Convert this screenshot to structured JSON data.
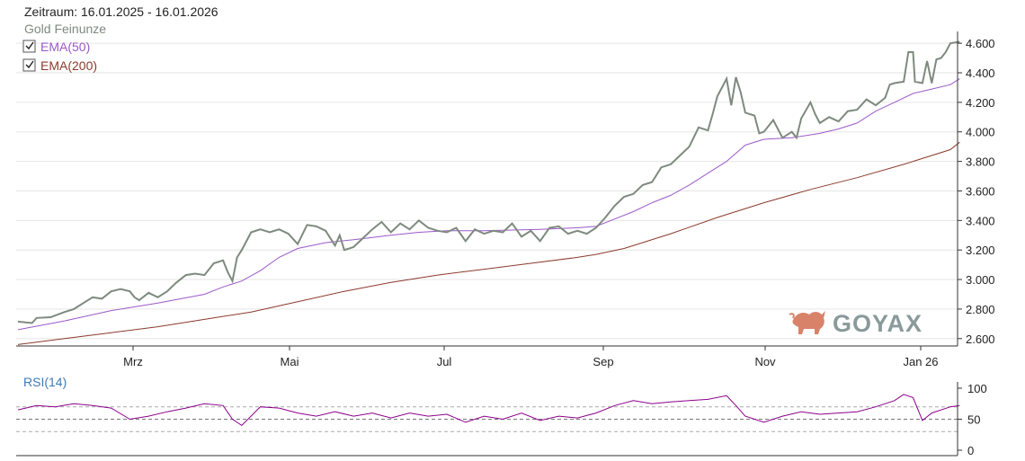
{
  "header": {
    "period_label": "Zeitraum: 16.01.2025 - 16.01.2026",
    "series_label": "Gold Feinunze"
  },
  "legend": [
    {
      "label": "EMA(50)",
      "color": "#9b59c9",
      "checked": true
    },
    {
      "label": "EMA(200)",
      "color": "#8b3a2b",
      "checked": true
    }
  ],
  "logo": {
    "text": "GOYAX",
    "icon": "bull-icon"
  },
  "colors": {
    "price": "#7e8a7e",
    "ema50": "#9b59c9",
    "ema200": "#8b3a2b",
    "rsi": "#8b008b",
    "rsi_light": "#e8a0e8",
    "grid": "#e6e6e6"
  },
  "chart_data": [
    {
      "type": "line",
      "x_labels": [
        "Mrz",
        "Mai",
        "Jul",
        "Sep",
        "Nov",
        "Jan 26"
      ],
      "ylim": [
        2550,
        4680
      ],
      "yticks": [
        "4.600",
        "4.400",
        "4.200",
        "4.000",
        "3.800",
        "3.600",
        "3.400",
        "3.200",
        "3.000",
        "2.800",
        "2.600"
      ],
      "grid": true,
      "legend_position": "top-left",
      "series": [
        {
          "name": "Gold Feinunze",
          "color": "#7e8a7e",
          "points": [
            [
              0,
              2715
            ],
            [
              0.015,
              2705
            ],
            [
              0.02,
              2740
            ],
            [
              0.035,
              2745
            ],
            [
              0.05,
              2780
            ],
            [
              0.06,
              2800
            ],
            [
              0.07,
              2840
            ],
            [
              0.08,
              2880
            ],
            [
              0.09,
              2870
            ],
            [
              0.1,
              2920
            ],
            [
              0.11,
              2935
            ],
            [
              0.12,
              2920
            ],
            [
              0.125,
              2880
            ],
            [
              0.13,
              2860
            ],
            [
              0.14,
              2910
            ],
            [
              0.15,
              2880
            ],
            [
              0.16,
              2920
            ],
            [
              0.17,
              2980
            ],
            [
              0.18,
              3030
            ],
            [
              0.19,
              3040
            ],
            [
              0.2,
              3030
            ],
            [
              0.21,
              3110
            ],
            [
              0.22,
              3130
            ],
            [
              0.225,
              3050
            ],
            [
              0.23,
              2990
            ],
            [
              0.235,
              3150
            ],
            [
              0.24,
              3200
            ],
            [
              0.25,
              3320
            ],
            [
              0.26,
              3340
            ],
            [
              0.27,
              3320
            ],
            [
              0.28,
              3340
            ],
            [
              0.29,
              3310
            ],
            [
              0.3,
              3240
            ],
            [
              0.31,
              3370
            ],
            [
              0.32,
              3360
            ],
            [
              0.33,
              3330
            ],
            [
              0.34,
              3230
            ],
            [
              0.345,
              3300
            ],
            [
              0.35,
              3200
            ],
            [
              0.36,
              3220
            ],
            [
              0.37,
              3280
            ],
            [
              0.38,
              3340
            ],
            [
              0.39,
              3390
            ],
            [
              0.4,
              3320
            ],
            [
              0.41,
              3380
            ],
            [
              0.42,
              3340
            ],
            [
              0.43,
              3400
            ],
            [
              0.44,
              3350
            ],
            [
              0.45,
              3330
            ],
            [
              0.46,
              3320
            ],
            [
              0.47,
              3350
            ],
            [
              0.48,
              3260
            ],
            [
              0.49,
              3340
            ],
            [
              0.5,
              3310
            ],
            [
              0.51,
              3330
            ],
            [
              0.52,
              3320
            ],
            [
              0.53,
              3380
            ],
            [
              0.54,
              3290
            ],
            [
              0.55,
              3330
            ],
            [
              0.56,
              3260
            ],
            [
              0.57,
              3350
            ],
            [
              0.58,
              3360
            ],
            [
              0.59,
              3310
            ],
            [
              0.6,
              3330
            ],
            [
              0.61,
              3310
            ],
            [
              0.62,
              3350
            ],
            [
              0.63,
              3420
            ],
            [
              0.64,
              3500
            ],
            [
              0.65,
              3560
            ],
            [
              0.66,
              3580
            ],
            [
              0.67,
              3640
            ],
            [
              0.68,
              3660
            ],
            [
              0.69,
              3760
            ],
            [
              0.7,
              3780
            ],
            [
              0.71,
              3840
            ],
            [
              0.72,
              3900
            ],
            [
              0.73,
              4030
            ],
            [
              0.74,
              4010
            ],
            [
              0.745,
              4120
            ],
            [
              0.75,
              4240
            ],
            [
              0.76,
              4360
            ],
            [
              0.765,
              4180
            ],
            [
              0.77,
              4370
            ],
            [
              0.775,
              4270
            ],
            [
              0.78,
              4130
            ],
            [
              0.79,
              4110
            ],
            [
              0.795,
              3990
            ],
            [
              0.8,
              4000
            ],
            [
              0.81,
              4080
            ],
            [
              0.82,
              3960
            ],
            [
              0.83,
              4000
            ],
            [
              0.835,
              3960
            ],
            [
              0.84,
              4090
            ],
            [
              0.85,
              4200
            ],
            [
              0.855,
              4120
            ],
            [
              0.86,
              4060
            ],
            [
              0.87,
              4100
            ],
            [
              0.88,
              4070
            ],
            [
              0.89,
              4140
            ],
            [
              0.9,
              4150
            ],
            [
              0.91,
              4220
            ],
            [
              0.92,
              4180
            ],
            [
              0.93,
              4230
            ],
            [
              0.935,
              4320
            ],
            [
              0.94,
              4330
            ],
            [
              0.95,
              4340
            ],
            [
              0.955,
              4540
            ],
            [
              0.96,
              4540
            ],
            [
              0.962,
              4340
            ],
            [
              0.97,
              4330
            ],
            [
              0.975,
              4480
            ],
            [
              0.98,
              4330
            ],
            [
              0.985,
              4490
            ],
            [
              0.99,
              4500
            ],
            [
              0.995,
              4540
            ],
            [
              1.0,
              4600
            ],
            [
              1.01,
              4610
            ]
          ]
        },
        {
          "name": "EMA(50)",
          "color": "#9b59c9",
          "points": [
            [
              0,
              2660
            ],
            [
              0.05,
              2720
            ],
            [
              0.1,
              2790
            ],
            [
              0.15,
              2840
            ],
            [
              0.2,
              2900
            ],
            [
              0.22,
              2950
            ],
            [
              0.24,
              2990
            ],
            [
              0.26,
              3060
            ],
            [
              0.28,
              3150
            ],
            [
              0.3,
              3210
            ],
            [
              0.33,
              3250
            ],
            [
              0.36,
              3270
            ],
            [
              0.4,
              3300
            ],
            [
              0.43,
              3320
            ],
            [
              0.46,
              3330
            ],
            [
              0.5,
              3330
            ],
            [
              0.53,
              3335
            ],
            [
              0.56,
              3340
            ],
            [
              0.6,
              3350
            ],
            [
              0.62,
              3360
            ],
            [
              0.64,
              3410
            ],
            [
              0.66,
              3460
            ],
            [
              0.68,
              3520
            ],
            [
              0.7,
              3570
            ],
            [
              0.72,
              3640
            ],
            [
              0.74,
              3720
            ],
            [
              0.76,
              3800
            ],
            [
              0.78,
              3910
            ],
            [
              0.8,
              3950
            ],
            [
              0.83,
              3960
            ],
            [
              0.86,
              3990
            ],
            [
              0.88,
              4020
            ],
            [
              0.9,
              4060
            ],
            [
              0.92,
              4140
            ],
            [
              0.94,
              4200
            ],
            [
              0.96,
              4260
            ],
            [
              0.98,
              4290
            ],
            [
              1.0,
              4320
            ],
            [
              1.01,
              4360
            ]
          ]
        },
        {
          "name": "EMA(200)",
          "color": "#8b3a2b",
          "points": [
            [
              0,
              2560
            ],
            [
              0.05,
              2600
            ],
            [
              0.1,
              2640
            ],
            [
              0.15,
              2680
            ],
            [
              0.2,
              2730
            ],
            [
              0.25,
              2780
            ],
            [
              0.3,
              2850
            ],
            [
              0.35,
              2920
            ],
            [
              0.4,
              2980
            ],
            [
              0.45,
              3030
            ],
            [
              0.5,
              3070
            ],
            [
              0.55,
              3110
            ],
            [
              0.6,
              3150
            ],
            [
              0.62,
              3170
            ],
            [
              0.65,
              3210
            ],
            [
              0.7,
              3310
            ],
            [
              0.75,
              3420
            ],
            [
              0.8,
              3520
            ],
            [
              0.85,
              3610
            ],
            [
              0.9,
              3690
            ],
            [
              0.95,
              3780
            ],
            [
              1.0,
              3880
            ],
            [
              1.01,
              3930
            ]
          ]
        }
      ]
    },
    {
      "type": "line",
      "title": "RSI(14)",
      "ylim": [
        0,
        100
      ],
      "yticks": [
        "100",
        "50",
        "0"
      ],
      "reference_lines": [
        70,
        50,
        30
      ],
      "series": [
        {
          "name": "RSI(14)",
          "color": "#8b008b",
          "points": [
            [
              0,
              65
            ],
            [
              0.02,
              72
            ],
            [
              0.04,
              70
            ],
            [
              0.06,
              75
            ],
            [
              0.08,
              72
            ],
            [
              0.1,
              68
            ],
            [
              0.12,
              50
            ],
            [
              0.14,
              55
            ],
            [
              0.16,
              62
            ],
            [
              0.18,
              68
            ],
            [
              0.2,
              75
            ],
            [
              0.22,
              72
            ],
            [
              0.23,
              50
            ],
            [
              0.24,
              40
            ],
            [
              0.26,
              70
            ],
            [
              0.28,
              68
            ],
            [
              0.3,
              60
            ],
            [
              0.32,
              55
            ],
            [
              0.34,
              62
            ],
            [
              0.36,
              55
            ],
            [
              0.38,
              60
            ],
            [
              0.4,
              52
            ],
            [
              0.42,
              60
            ],
            [
              0.44,
              55
            ],
            [
              0.46,
              58
            ],
            [
              0.48,
              45
            ],
            [
              0.5,
              55
            ],
            [
              0.52,
              50
            ],
            [
              0.54,
              60
            ],
            [
              0.56,
              48
            ],
            [
              0.58,
              55
            ],
            [
              0.6,
              52
            ],
            [
              0.62,
              60
            ],
            [
              0.64,
              72
            ],
            [
              0.66,
              80
            ],
            [
              0.68,
              75
            ],
            [
              0.7,
              78
            ],
            [
              0.72,
              80
            ],
            [
              0.74,
              82
            ],
            [
              0.76,
              88
            ],
            [
              0.77,
              72
            ],
            [
              0.78,
              55
            ],
            [
              0.8,
              45
            ],
            [
              0.82,
              55
            ],
            [
              0.84,
              62
            ],
            [
              0.86,
              58
            ],
            [
              0.88,
              60
            ],
            [
              0.9,
              62
            ],
            [
              0.92,
              70
            ],
            [
              0.94,
              80
            ],
            [
              0.95,
              90
            ],
            [
              0.96,
              85
            ],
            [
              0.97,
              48
            ],
            [
              0.98,
              60
            ],
            [
              1.0,
              70
            ],
            [
              1.01,
              72
            ]
          ]
        }
      ]
    }
  ]
}
